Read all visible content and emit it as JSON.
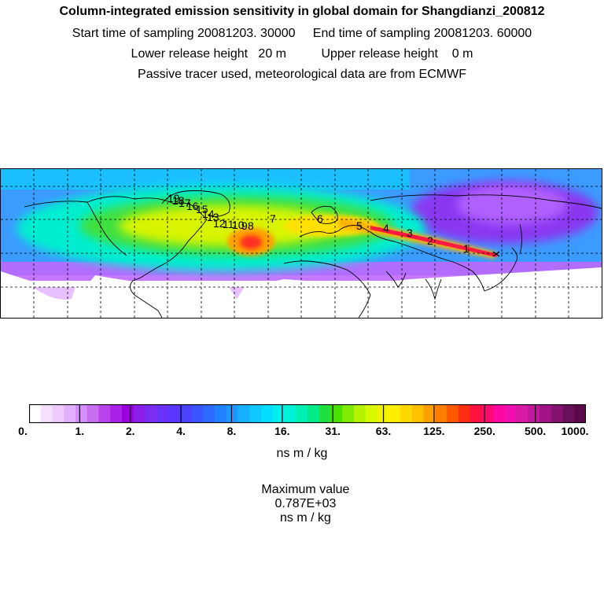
{
  "titles": {
    "line1": "Column-integrated emission sensitivity in global domain for Shangdianzi_200812",
    "line2": "Start time of sampling 20081203. 30000     End time of sampling 20081203. 60000",
    "line3": "Lower release height   20 m          Upper release height    0 m",
    "line4": "Passive tracer used, meteorological data are from ECMWF"
  },
  "map": {
    "trajectory_labels": [
      "1",
      "2",
      "3",
      "4",
      "5",
      "6",
      "7",
      "8",
      "9",
      "10",
      "11",
      "12",
      "13",
      "14",
      "15",
      "16",
      "17",
      "18",
      "19"
    ],
    "colors": {
      "background_band": "#3b9bff",
      "low": "#c060ff",
      "mid": "#00e8c8",
      "high": "#ffee00",
      "peak": "#ff2030"
    }
  },
  "colorbar": {
    "colors": [
      "#ffffff",
      "#f6e0ff",
      "#eecaff",
      "#e2b0ff",
      "#d58fff",
      "#c86ff0",
      "#b944ee",
      "#aa22e8",
      "#9900dd",
      "#8a1ee8",
      "#7a2ef2",
      "#6a32f8",
      "#5a36ff",
      "#4a42ff",
      "#3a54ff",
      "#2a6aff",
      "#1f82ff",
      "#1a98ff",
      "#16b0ff",
      "#10c8ff",
      "#00ddff",
      "#00eeee",
      "#00f2d8",
      "#00f0b4",
      "#00ea88",
      "#20e040",
      "#48e000",
      "#80ea00",
      "#b4f400",
      "#d8f800",
      "#f0f400",
      "#ffee00",
      "#ffd800",
      "#ffc000",
      "#ffa000",
      "#ff8000",
      "#ff5a00",
      "#ff2e10",
      "#ff1040",
      "#ff0a70",
      "#ff08a0",
      "#f010b0",
      "#d81aa6",
      "#c0189a",
      "#a01488",
      "#841270",
      "#6a0f5a",
      "#5a0a4a"
    ],
    "tick_labels": [
      "0.",
      "1.",
      "2.",
      "4.",
      "8.",
      "16.",
      "31.",
      "63.",
      "125.",
      "250.",
      "500.",
      "1000."
    ],
    "unit": "ns m / kg"
  },
  "max_value": {
    "label": "Maximum value",
    "value": "0.787E+03",
    "unit": "ns m / kg"
  }
}
